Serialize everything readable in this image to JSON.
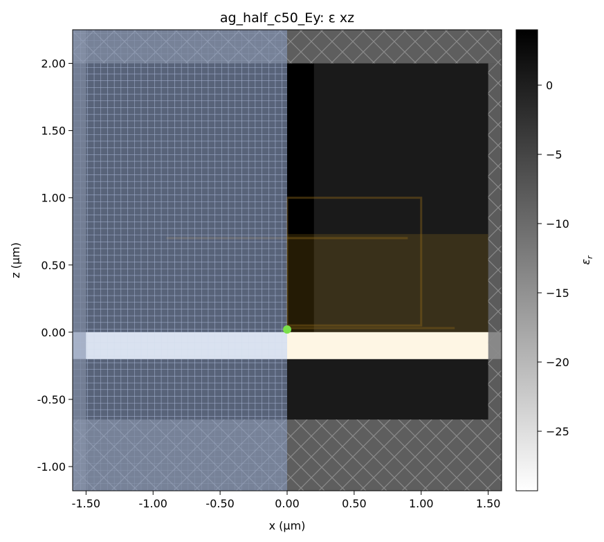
{
  "chart_data": {
    "type": "heatmap",
    "title": "ag_half_c50_Ey: ε xz",
    "xlabel": "x (μm)",
    "ylabel": "z (μm)",
    "xlim": [
      -1.6,
      1.6
    ],
    "ylim": [
      -1.18,
      2.25
    ],
    "xticks": [
      -1.5,
      -1.0,
      -0.5,
      0.0,
      0.5,
      1.0,
      1.5
    ],
    "xtick_labels": [
      "-1.50",
      "-1.00",
      "-0.50",
      "0.00",
      "0.50",
      "1.00",
      "1.50"
    ],
    "yticks": [
      -1.0,
      -0.5,
      0.0,
      0.5,
      1.0,
      1.5,
      2.0
    ],
    "ytick_labels": [
      "-1.00",
      "-0.50",
      "0.00",
      "0.50",
      "1.00",
      "1.50",
      "2.00"
    ],
    "colorbar": {
      "label": "ε_r",
      "range": [
        -29.3,
        4.0
      ],
      "ticks": [
        0,
        -5,
        -10,
        -15,
        -20,
        -25
      ],
      "tick_labels": [
        "0",
        "−5",
        "−10",
        "−15",
        "−20",
        "−25"
      ],
      "colormap": "Greys"
    },
    "regions": [
      {
        "name": "background",
        "x": [
          -1.6,
          1.6
        ],
        "z": [
          -1.18,
          2.25
        ],
        "eps": 1.0
      },
      {
        "name": "silver film",
        "x": [
          -1.6,
          1.6
        ],
        "z": [
          -0.2,
          0.0
        ],
        "eps": -29.3
      },
      {
        "name": "simulation domain",
        "x": [
          -1.5,
          1.5
        ],
        "z": [
          -0.65,
          2.0
        ],
        "eps": 1.0
      }
    ],
    "overlays": [
      {
        "name": "pml",
        "x": [
          -1.6,
          1.6
        ],
        "z_ranges": [
          [
            -1.18,
            -0.65
          ],
          [
            2.0,
            2.25
          ]
        ],
        "pattern": "crosshatch"
      },
      {
        "name": "symmetry plane half",
        "x": [
          -1.6,
          0.0
        ],
        "pattern": "grid",
        "color": "#8ca0c8"
      },
      {
        "name": "source",
        "x": [
          0.0,
          1.5
        ],
        "z": [
          0.0,
          0.73
        ],
        "color": "#c8961e"
      },
      {
        "name": "source point",
        "x": 0.0,
        "z": 0.02,
        "color": "#7be04a"
      }
    ]
  }
}
